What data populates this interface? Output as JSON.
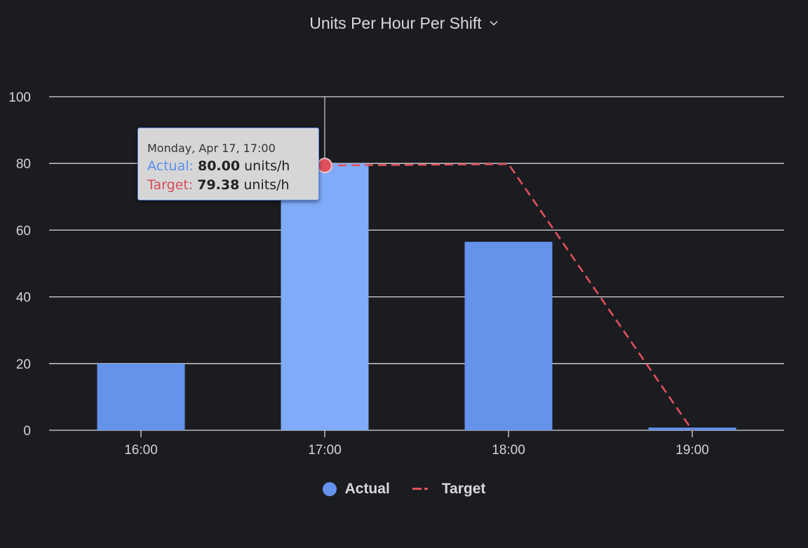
{
  "header": {
    "title": "Units Per Hour Per Shift",
    "dropdown_icon": "chevron-down-icon"
  },
  "chart_data": {
    "type": "bar",
    "categories": [
      "16:00",
      "17:00",
      "18:00",
      "19:00"
    ],
    "series": [
      {
        "name": "Actual",
        "type": "bar",
        "values": [
          20,
          80,
          56.5,
          0.8
        ],
        "color": "#6592eb",
        "highlight_color": "#80abf8"
      },
      {
        "name": "Target",
        "type": "line",
        "style": "dashed",
        "values": [
          null,
          79.38,
          79.8,
          0
        ],
        "color": "#e0505e"
      }
    ],
    "ylim": [
      0,
      100
    ],
    "yticks": [
      "0",
      "20",
      "40",
      "60",
      "80",
      "100"
    ],
    "grid": true,
    "legend_position": "bottom-center",
    "hovered_index": 1
  },
  "tooltip": {
    "date": "Monday, Apr 17, 17:00",
    "actual_label": "Actual:",
    "actual_value": "80.00",
    "target_label": "Target:",
    "target_value": "79.38",
    "unit": "units/h"
  },
  "legend": {
    "actual": "Actual",
    "target": "Target"
  },
  "colors": {
    "background": "#1b1c20",
    "grid": "#d9d9d9",
    "actual": "#6592eb",
    "target": "#e0505e"
  }
}
